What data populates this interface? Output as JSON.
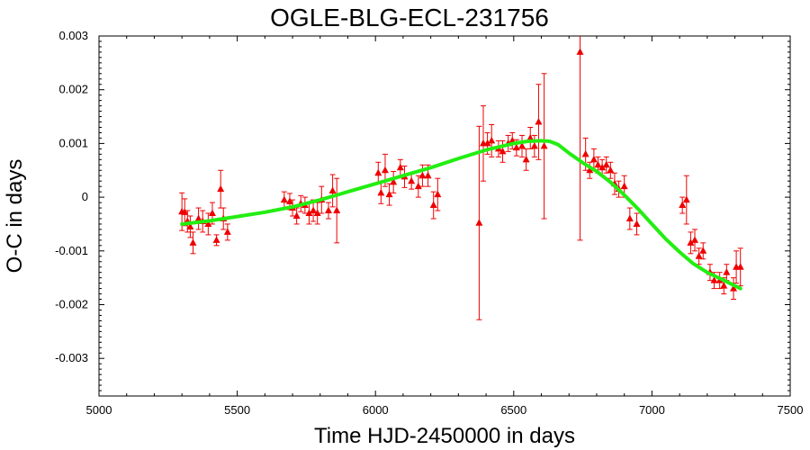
{
  "chart_data": {
    "type": "scatter",
    "title": "OGLE-BLG-ECL-231756",
    "xlabel": "Time HJD-2450000 in days",
    "ylabel": "O-C in days",
    "xlim": [
      5000,
      7500
    ],
    "ylim": [
      -0.0037,
      0.003
    ],
    "xticks": [
      5000,
      5500,
      6000,
      6500,
      7000,
      7500
    ],
    "xtick_labels": [
      "5000",
      "5500",
      "6000",
      "6500",
      "7000",
      "7500"
    ],
    "yticks": [
      0.003,
      0.002,
      0.001,
      0,
      -0.001,
      -0.002,
      -0.003
    ],
    "ytick_labels": [
      "0.003",
      "0.002",
      "0.001",
      "0",
      "-0.001",
      "-0.002",
      "-0.003"
    ],
    "grid": false,
    "legend": "none",
    "colors": {
      "points": "#ee0000",
      "fit": "#22ee11"
    },
    "series": [
      {
        "type": "scatter_errorbars",
        "points": [
          {
            "x": 5300,
            "y": -0.00027,
            "e": 0.00035
          },
          {
            "x": 5310,
            "y": -0.00028,
            "e": 0.00025
          },
          {
            "x": 5320,
            "y": -0.00045,
            "e": 0.0002
          },
          {
            "x": 5330,
            "y": -0.00055,
            "e": 0.0002
          },
          {
            "x": 5340,
            "y": -0.00085,
            "e": 0.0002
          },
          {
            "x": 5360,
            "y": -0.0004,
            "e": 0.0002
          },
          {
            "x": 5375,
            "y": -0.00045,
            "e": 0.0002
          },
          {
            "x": 5395,
            "y": -0.0005,
            "e": 0.0002
          },
          {
            "x": 5410,
            "y": -0.0003,
            "e": 0.0002
          },
          {
            "x": 5425,
            "y": -0.0008,
            "e": 0.0001
          },
          {
            "x": 5440,
            "y": 0.00015,
            "e": 0.00035
          },
          {
            "x": 5450,
            "y": -0.0004,
            "e": 0.0002
          },
          {
            "x": 5465,
            "y": -0.00065,
            "e": 0.00015
          },
          {
            "x": 5670,
            "y": -5e-05,
            "e": 0.00015
          },
          {
            "x": 5690,
            "y": -8e-05,
            "e": 0.00015
          },
          {
            "x": 5700,
            "y": -0.0002,
            "e": 0.00015
          },
          {
            "x": 5715,
            "y": -0.00035,
            "e": 0.00015
          },
          {
            "x": 5730,
            "y": -0.00012,
            "e": 0.00015
          },
          {
            "x": 5745,
            "y": -0.00015,
            "e": 0.00015
          },
          {
            "x": 5760,
            "y": -0.0003,
            "e": 0.0002
          },
          {
            "x": 5775,
            "y": -0.00025,
            "e": 0.0002
          },
          {
            "x": 5790,
            "y": -0.0003,
            "e": 0.0002
          },
          {
            "x": 5805,
            "y": -5e-05,
            "e": 0.00025
          },
          {
            "x": 5830,
            "y": -0.00025,
            "e": 0.00015
          },
          {
            "x": 5845,
            "y": 0.00012,
            "e": 0.0003
          },
          {
            "x": 5860,
            "y": -0.00025,
            "e": 0.0006
          },
          {
            "x": 6010,
            "y": 0.00045,
            "e": 0.0002
          },
          {
            "x": 6020,
            "y": 8e-05,
            "e": 0.0002
          },
          {
            "x": 6035,
            "y": 0.0005,
            "e": 0.0003
          },
          {
            "x": 6050,
            "y": 5e-05,
            "e": 0.0002
          },
          {
            "x": 6065,
            "y": 0.00028,
            "e": 0.0002
          },
          {
            "x": 6090,
            "y": 0.00055,
            "e": 0.00015
          },
          {
            "x": 6105,
            "y": 0.00038,
            "e": 0.0002
          },
          {
            "x": 6130,
            "y": 0.0003,
            "e": 0.00015
          },
          {
            "x": 6155,
            "y": 0.0002,
            "e": 0.0002
          },
          {
            "x": 6170,
            "y": 0.0004,
            "e": 0.0002
          },
          {
            "x": 6190,
            "y": 0.0004,
            "e": 0.0002
          },
          {
            "x": 6210,
            "y": -0.00015,
            "e": 0.00025
          },
          {
            "x": 6225,
            "y": 5e-05,
            "e": 0.0003
          },
          {
            "x": 6375,
            "y": -0.00048,
            "e": 0.0018
          },
          {
            "x": 6390,
            "y": 0.001,
            "e": 0.0007
          },
          {
            "x": 6405,
            "y": 0.001,
            "e": 0.0002
          },
          {
            "x": 6420,
            "y": 0.00105,
            "e": 0.0003
          },
          {
            "x": 6445,
            "y": 0.0009,
            "e": 0.00015
          },
          {
            "x": 6460,
            "y": 0.00085,
            "e": 0.0002
          },
          {
            "x": 6480,
            "y": 0.001,
            "e": 0.00015
          },
          {
            "x": 6495,
            "y": 0.00105,
            "e": 0.00015
          },
          {
            "x": 6510,
            "y": 0.00092,
            "e": 0.00015
          },
          {
            "x": 6530,
            "y": 0.00095,
            "e": 0.0002
          },
          {
            "x": 6545,
            "y": 0.0007,
            "e": 0.0002
          },
          {
            "x": 6560,
            "y": 0.0011,
            "e": 0.0002
          },
          {
            "x": 6575,
            "y": 0.00095,
            "e": 0.0002
          },
          {
            "x": 6590,
            "y": 0.0014,
            "e": 0.0007
          },
          {
            "x": 6610,
            "y": 0.00095,
            "e": 0.00135
          },
          {
            "x": 6740,
            "y": 0.0027,
            "e": 0.0035
          },
          {
            "x": 6760,
            "y": 0.0008,
            "e": 0.0003
          },
          {
            "x": 6775,
            "y": 0.0005,
            "e": 0.00015
          },
          {
            "x": 6790,
            "y": 0.0007,
            "e": 0.0002
          },
          {
            "x": 6805,
            "y": 0.0006,
            "e": 0.00015
          },
          {
            "x": 6820,
            "y": 0.00055,
            "e": 0.00015
          },
          {
            "x": 6835,
            "y": 0.0006,
            "e": 0.00015
          },
          {
            "x": 6850,
            "y": 0.0005,
            "e": 0.00015
          },
          {
            "x": 6865,
            "y": 0.00025,
            "e": 0.0002
          },
          {
            "x": 6880,
            "y": 0.00015,
            "e": 0.00015
          },
          {
            "x": 6900,
            "y": 0.0002,
            "e": 0.0002
          },
          {
            "x": 6920,
            "y": -0.0004,
            "e": 0.0002
          },
          {
            "x": 6945,
            "y": -0.0005,
            "e": 0.0002
          },
          {
            "x": 7110,
            "y": -0.00015,
            "e": 0.00015
          },
          {
            "x": 7125,
            "y": -5e-05,
            "e": 0.00045
          },
          {
            "x": 7140,
            "y": -0.00085,
            "e": 0.0002
          },
          {
            "x": 7155,
            "y": -0.0008,
            "e": 0.0002
          },
          {
            "x": 7170,
            "y": -0.0011,
            "e": 0.00015
          },
          {
            "x": 7185,
            "y": -0.001,
            "e": 0.00015
          },
          {
            "x": 7210,
            "y": -0.0014,
            "e": 0.00015
          },
          {
            "x": 7225,
            "y": -0.00155,
            "e": 0.00015
          },
          {
            "x": 7245,
            "y": -0.00155,
            "e": 0.00015
          },
          {
            "x": 7260,
            "y": -0.00165,
            "e": 0.00015
          },
          {
            "x": 7270,
            "y": -0.0014,
            "e": 0.00015
          },
          {
            "x": 7295,
            "y": -0.0017,
            "e": 0.0002
          },
          {
            "x": 7305,
            "y": -0.0013,
            "e": 0.0003
          },
          {
            "x": 7320,
            "y": -0.0013,
            "e": 0.00035
          }
        ]
      },
      {
        "type": "fit_curve",
        "x": [
          5300,
          5400,
          5500,
          5600,
          5700,
          5800,
          5900,
          6000,
          6100,
          6200,
          6300,
          6400,
          6500,
          6550,
          6600,
          6630,
          6660,
          6700,
          6750,
          6800,
          6850,
          6900,
          6950,
          7000,
          7050,
          7100,
          7150,
          7200,
          7250,
          7300,
          7320
        ],
        "y": [
          -0.0005,
          -0.00044,
          -0.00036,
          -0.00028,
          -0.00018,
          -5e-05,
          0.0001,
          0.00025,
          0.0004,
          0.00055,
          0.00072,
          0.00088,
          0.001,
          0.00104,
          0.00105,
          0.00104,
          0.00098,
          0.00082,
          0.00064,
          0.00048,
          0.00028,
          4e-05,
          -0.00022,
          -0.0005,
          -0.00078,
          -0.00102,
          -0.00124,
          -0.0014,
          -0.00152,
          -0.00165,
          -0.0017
        ]
      }
    ]
  }
}
